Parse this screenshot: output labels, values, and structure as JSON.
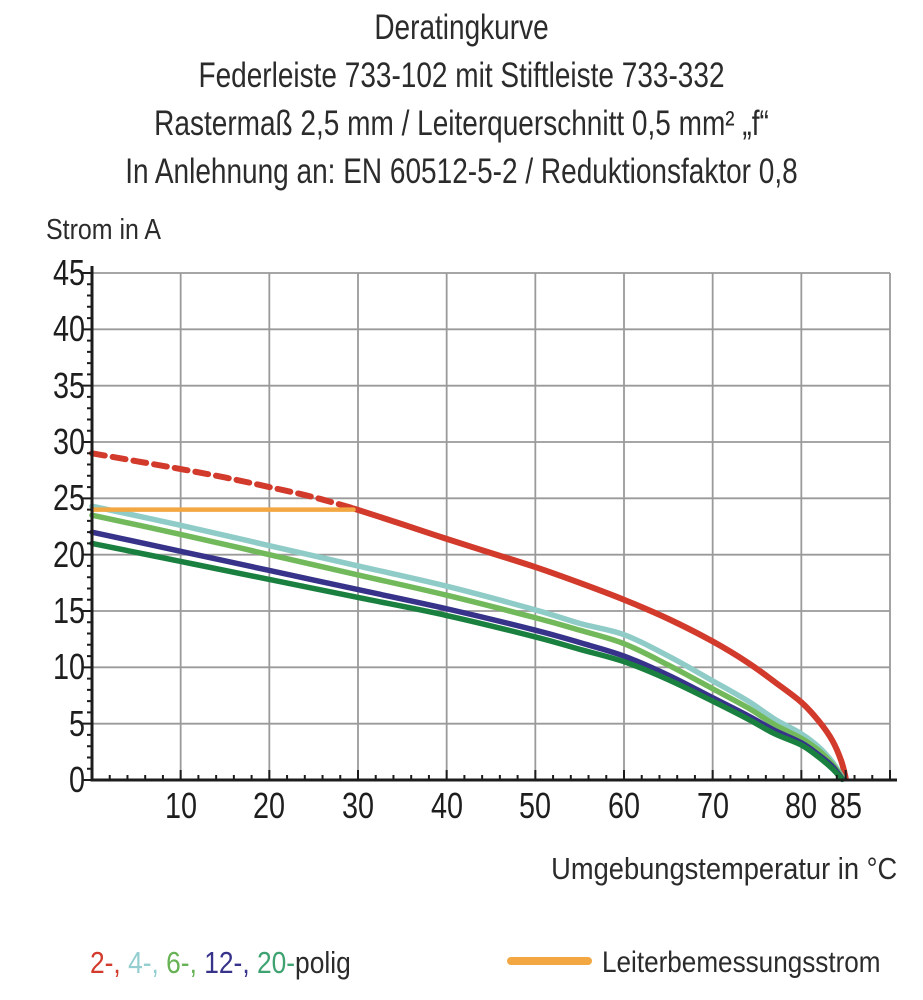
{
  "header": {
    "lines": [
      "Deratingkurve",
      "Federleiste 733-102 mit Stiftleiste 733-332",
      "Rastermaß 2,5 mm / Leiterquerschnitt 0,5 mm² „f“",
      "In Anlehnung an: EN 60512-5-2 / Reduktionsfaktor 0,8"
    ]
  },
  "chart_data": {
    "type": "line",
    "title": "Deratingkurve",
    "xlabel": "Umgebungstemperatur in °C",
    "ylabel": "Strom in A",
    "xlim": [
      0,
      90
    ],
    "ylim": [
      0,
      45
    ],
    "grid": true,
    "grid_color": "#9a9a9a",
    "axis_color": "#1c1c1c",
    "x_ticks_labeled": [
      10,
      20,
      30,
      40,
      50,
      60,
      70,
      80,
      85
    ],
    "y_ticks_labeled": [
      0,
      5,
      10,
      15,
      20,
      25,
      30,
      35,
      40,
      45
    ],
    "x_gridlines": [
      10,
      20,
      30,
      40,
      50,
      60,
      70,
      80,
      90
    ],
    "y_gridlines": [
      5,
      10,
      15,
      20,
      25,
      30,
      35,
      40,
      45
    ],
    "x_minor_step": 2,
    "y_minor_step": 1,
    "series": [
      {
        "name": "2-polig",
        "color": "#d23a2c",
        "width": 6,
        "segments": [
          {
            "dash": true,
            "points": [
              [
                0,
                29
              ],
              [
                5,
                28.3
              ],
              [
                10,
                27.6
              ],
              [
                15,
                26.85
              ],
              [
                20,
                26.0
              ],
              [
                25,
                25.1
              ],
              [
                29.5,
                24.1
              ]
            ]
          },
          {
            "dash": false,
            "points": [
              [
                29.5,
                24.1
              ],
              [
                35,
                22.7
              ],
              [
                40,
                21.4
              ],
              [
                45,
                20.15
              ],
              [
                50,
                18.9
              ],
              [
                55,
                17.5
              ],
              [
                60,
                16.0
              ],
              [
                65,
                14.3
              ],
              [
                70,
                12.3
              ],
              [
                74,
                10.4
              ],
              [
                77,
                8.7
              ],
              [
                80,
                6.9
              ],
              [
                82,
                5.2
              ],
              [
                83.5,
                3.5
              ],
              [
                84.5,
                1.7
              ],
              [
                85,
                0.2
              ]
            ]
          }
        ]
      },
      {
        "name": "4-polig",
        "color": "#8fccc7",
        "width": 5.5,
        "segments": [
          {
            "dash": false,
            "points": [
              [
                0,
                24.3
              ],
              [
                10,
                22.6
              ],
              [
                20,
                20.8
              ],
              [
                30,
                19.0
              ],
              [
                40,
                17.2
              ],
              [
                50,
                15.1
              ],
              [
                55,
                13.9
              ],
              [
                60,
                12.9
              ],
              [
                65,
                11.0
              ],
              [
                70,
                8.8
              ],
              [
                74,
                7.0
              ],
              [
                77,
                5.4
              ],
              [
                80,
                4.1
              ],
              [
                82,
                2.9
              ],
              [
                83.5,
                1.6
              ],
              [
                84.7,
                0.15
              ]
            ]
          }
        ]
      },
      {
        "name": "6-polig",
        "color": "#72b95c",
        "width": 5.5,
        "segments": [
          {
            "dash": false,
            "points": [
              [
                0,
                23.5
              ],
              [
                10,
                21.8
              ],
              [
                20,
                20.0
              ],
              [
                30,
                18.2
              ],
              [
                40,
                16.4
              ],
              [
                50,
                14.4
              ],
              [
                55,
                13.3
              ],
              [
                60,
                12.1
              ],
              [
                65,
                10.2
              ],
              [
                70,
                8.1
              ],
              [
                74,
                6.4
              ],
              [
                77,
                4.9
              ],
              [
                80,
                3.7
              ],
              [
                82,
                2.6
              ],
              [
                83.5,
                1.4
              ],
              [
                84.7,
                0.1
              ]
            ]
          }
        ]
      },
      {
        "name": "12-polig",
        "color": "#37338a",
        "width": 5.5,
        "segments": [
          {
            "dash": false,
            "points": [
              [
                0,
                22.0
              ],
              [
                10,
                20.3
              ],
              [
                20,
                18.6
              ],
              [
                30,
                16.9
              ],
              [
                40,
                15.2
              ],
              [
                50,
                13.3
              ],
              [
                55,
                12.2
              ],
              [
                60,
                11.0
              ],
              [
                65,
                9.3
              ],
              [
                70,
                7.3
              ],
              [
                74,
                5.7
              ],
              [
                77,
                4.4
              ],
              [
                80,
                3.3
              ],
              [
                82,
                2.2
              ],
              [
                83.5,
                1.2
              ],
              [
                84.6,
                0.1
              ]
            ]
          }
        ]
      },
      {
        "name": "20-polig",
        "color": "#1a8040",
        "width": 5.5,
        "segments": [
          {
            "dash": false,
            "points": [
              [
                0,
                21.0
              ],
              [
                10,
                19.4
              ],
              [
                20,
                17.8
              ],
              [
                30,
                16.2
              ],
              [
                40,
                14.6
              ],
              [
                50,
                12.7
              ],
              [
                55,
                11.6
              ],
              [
                60,
                10.5
              ],
              [
                65,
                8.9
              ],
              [
                70,
                7.0
              ],
              [
                74,
                5.4
              ],
              [
                77,
                4.1
              ],
              [
                80,
                3.1
              ],
              [
                82,
                2.0
              ],
              [
                83.5,
                1.0
              ],
              [
                84.6,
                0.05
              ]
            ]
          }
        ]
      },
      {
        "name": "Leiterbemessungsstrom",
        "color": "#f2a742",
        "width": 4.5,
        "segments": [
          {
            "dash": false,
            "points": [
              [
                0,
                24
              ],
              [
                29.5,
                24
              ]
            ]
          }
        ]
      }
    ]
  },
  "legend": {
    "poles": {
      "items": [
        {
          "label": "2-, ",
          "color": "#d23a2c"
        },
        {
          "label": "4-, ",
          "color": "#94ced0"
        },
        {
          "label": "6-, ",
          "color": "#67b254"
        },
        {
          "label": "12-, ",
          "color": "#37338a"
        },
        {
          "label": "20-",
          "color": "#3fa271"
        }
      ],
      "suffix": "polig",
      "suffix_color": "#2b2b2b"
    },
    "rated_current": {
      "label": "Leiterbemessungsstrom",
      "color": "#f2a742"
    }
  }
}
